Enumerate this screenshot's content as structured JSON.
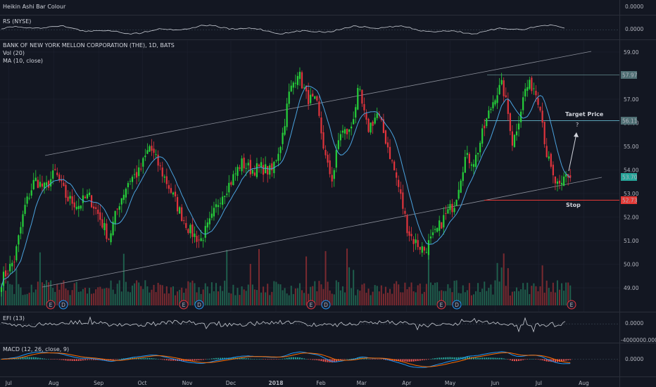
{
  "panes": {
    "heikin": {
      "title": "Heikin Ashi Bar Colour",
      "axis_label": "0.0000"
    },
    "rs": {
      "title": "RS (NYSE)",
      "axis_label": "0.0000"
    },
    "main": {
      "title": "BANK OF NEW YORK MELLON CORPORATION (THE), 1D, BATS",
      "vol_label": "Vol (20)",
      "ma_label": "MA (10, close)"
    },
    "efi": {
      "title": "EFI (13)",
      "axis_labels": [
        "0.0000",
        "-4000000.0000"
      ]
    },
    "macd": {
      "title": "MACD (12, 26, close, 9)",
      "axis_label": "0.0000"
    }
  },
  "annotations": {
    "target_price_label": "Target Price",
    "question_mark": "?",
    "stop_label": "Stop"
  },
  "colors": {
    "background": "#131722",
    "up": "#26d03a",
    "down": "#e0343c",
    "ma": "#4aa3df",
    "grid": "#1e2230",
    "last_price_badge": "#26a69a",
    "stop_badge": "#e53935",
    "level_badge": "#4f6f74",
    "macd_line": "#2196f3",
    "signal_line": "#ff6d00"
  },
  "event_markers": [
    {
      "label": "E",
      "kind": "earnings"
    },
    {
      "label": "D",
      "kind": "dividend"
    },
    {
      "label": "E",
      "kind": "earnings"
    },
    {
      "label": "D",
      "kind": "dividend"
    },
    {
      "label": "E",
      "kind": "earnings"
    },
    {
      "label": "D",
      "kind": "dividend"
    },
    {
      "label": "E",
      "kind": "earnings"
    },
    {
      "label": "D",
      "kind": "dividend"
    },
    {
      "label": "E",
      "kind": "earnings"
    }
  ],
  "chart_data": {
    "type": "candlestick",
    "title": "BANK OF NEW YORK MELLON CORPORATION (THE), 1D, BATS",
    "x_axis_labels": [
      "Jul",
      "Aug",
      "Sep",
      "Oct",
      "Nov",
      "Dec",
      "2018",
      "Feb",
      "Mar",
      "Apr",
      "May",
      "Jun",
      "Jul",
      "Aug"
    ],
    "y_axis_labels": [
      "59.00",
      "57.00",
      "56.00",
      "55.00",
      "54.00",
      "53.00",
      "52.00",
      "51.00",
      "50.00",
      "49.00"
    ],
    "ylim": [
      48.2,
      59.4
    ],
    "price_labels": {
      "resistance": "57.97",
      "target": "56.11",
      "last": "53.70",
      "stop": "52.73"
    },
    "levels": {
      "resistance": 57.97,
      "target": 56.11,
      "last": 53.7,
      "stop": 52.73
    },
    "trendlines": [
      {
        "name": "upper channel",
        "points": [
          [
            "2017-07-01",
            54.65
          ],
          [
            "2018-07-31",
            59.0
          ]
        ]
      },
      {
        "name": "lower channel",
        "points": [
          [
            "2017-07-01",
            49.0
          ],
          [
            "2018-07-31",
            53.65
          ]
        ]
      }
    ],
    "close_path": [
      [
        "2017-06-26",
        49.3
      ],
      [
        "2017-07-05",
        50.2
      ],
      [
        "2017-07-12",
        52.4
      ],
      [
        "2017-07-19",
        53.6
      ],
      [
        "2017-07-26",
        53.2
      ],
      [
        "2017-08-02",
        53.9
      ],
      [
        "2017-08-10",
        52.8
      ],
      [
        "2017-08-18",
        52.5
      ],
      [
        "2017-08-25",
        52.9
      ],
      [
        "2017-08-31",
        52.2
      ],
      [
        "2017-09-08",
        51.1
      ],
      [
        "2017-09-15",
        52.6
      ],
      [
        "2017-09-22",
        53.6
      ],
      [
        "2017-09-29",
        53.9
      ],
      [
        "2017-10-06",
        55.0
      ],
      [
        "2017-10-13",
        54.1
      ],
      [
        "2017-10-20",
        53.2
      ],
      [
        "2017-10-27",
        52.2
      ],
      [
        "2017-11-03",
        51.4
      ],
      [
        "2017-11-10",
        51.0
      ],
      [
        "2017-11-17",
        51.8
      ],
      [
        "2017-11-24",
        52.9
      ],
      [
        "2017-12-01",
        53.5
      ],
      [
        "2017-12-08",
        54.3
      ],
      [
        "2017-12-15",
        54.0
      ],
      [
        "2017-12-22",
        54.1
      ],
      [
        "2017-12-29",
        53.9
      ],
      [
        "2018-01-05",
        55.3
      ],
      [
        "2018-01-10",
        57.2
      ],
      [
        "2018-01-16",
        58.2
      ],
      [
        "2018-01-22",
        57.1
      ],
      [
        "2018-01-29",
        56.8
      ],
      [
        "2018-02-05",
        54.2
      ],
      [
        "2018-02-09",
        53.6
      ],
      [
        "2018-02-14",
        55.6
      ],
      [
        "2018-02-21",
        55.6
      ],
      [
        "2018-02-27",
        57.4
      ],
      [
        "2018-03-05",
        55.7
      ],
      [
        "2018-03-12",
        56.4
      ],
      [
        "2018-03-19",
        55.0
      ],
      [
        "2018-03-26",
        53.4
      ],
      [
        "2018-04-02",
        51.4
      ],
      [
        "2018-04-06",
        51.0
      ],
      [
        "2018-04-13",
        50.6
      ],
      [
        "2018-04-20",
        51.2
      ],
      [
        "2018-04-27",
        52.0
      ],
      [
        "2018-05-04",
        52.6
      ],
      [
        "2018-05-11",
        54.5
      ],
      [
        "2018-05-18",
        54.4
      ],
      [
        "2018-05-25",
        55.9
      ],
      [
        "2018-06-01",
        57.2
      ],
      [
        "2018-06-06",
        57.6
      ],
      [
        "2018-06-11",
        56.0
      ],
      [
        "2018-06-13",
        55.1
      ],
      [
        "2018-06-18",
        56.4
      ],
      [
        "2018-06-22",
        57.5
      ],
      [
        "2018-06-27",
        57.6
      ],
      [
        "2018-07-02",
        56.8
      ],
      [
        "2018-07-06",
        54.8
      ],
      [
        "2018-07-11",
        53.6
      ],
      [
        "2018-07-16",
        53.1
      ],
      [
        "2018-07-19",
        53.8
      ],
      [
        "2018-07-24",
        53.7
      ]
    ]
  }
}
